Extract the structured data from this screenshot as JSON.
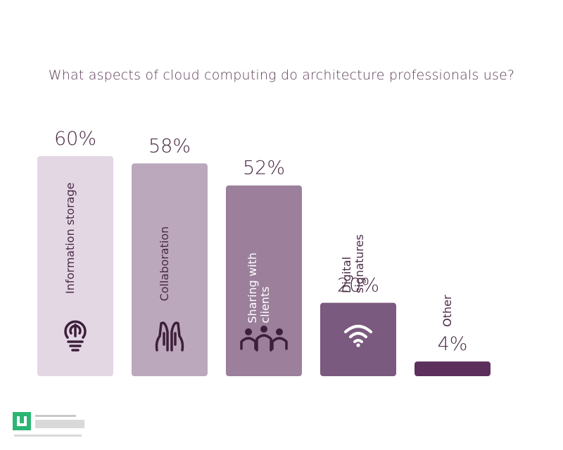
{
  "chart_data": {
    "type": "bar",
    "title": "What aspects of cloud computing do architecture professionals use?",
    "categories": [
      "Information storage",
      "Collaboration",
      "Sharing with clients",
      "Digital signatures",
      "Other"
    ],
    "label_lines": [
      [
        "Information storage"
      ],
      [
        "Collaboration"
      ],
      [
        "Sharing with",
        "clients"
      ],
      [
        "Digital",
        "signatures"
      ],
      [
        "Other"
      ]
    ],
    "values": [
      60,
      58,
      52,
      20,
      4
    ],
    "value_labels": [
      "60%",
      "58%",
      "52%",
      "20%",
      "4%"
    ],
    "unit": "%",
    "ylim": [
      0,
      60
    ],
    "grid": false,
    "legend": "none",
    "colors": [
      "#e3d7e4",
      "#bba8bd",
      "#9b7f9b",
      "#7b5a7f",
      "#5c2f5c"
    ],
    "label_colors": [
      "#4a2a45",
      "#4a2a45",
      "#ffffff",
      "#4a2a45",
      "#4a2a45"
    ],
    "icons": [
      "lightbulb-icon",
      "praying-hands-icon",
      "people-group-icon",
      "wifi-icon",
      ""
    ]
  },
  "logo": {
    "name": "dsbavm-logo-icon",
    "mark_color": "#2bb673"
  }
}
